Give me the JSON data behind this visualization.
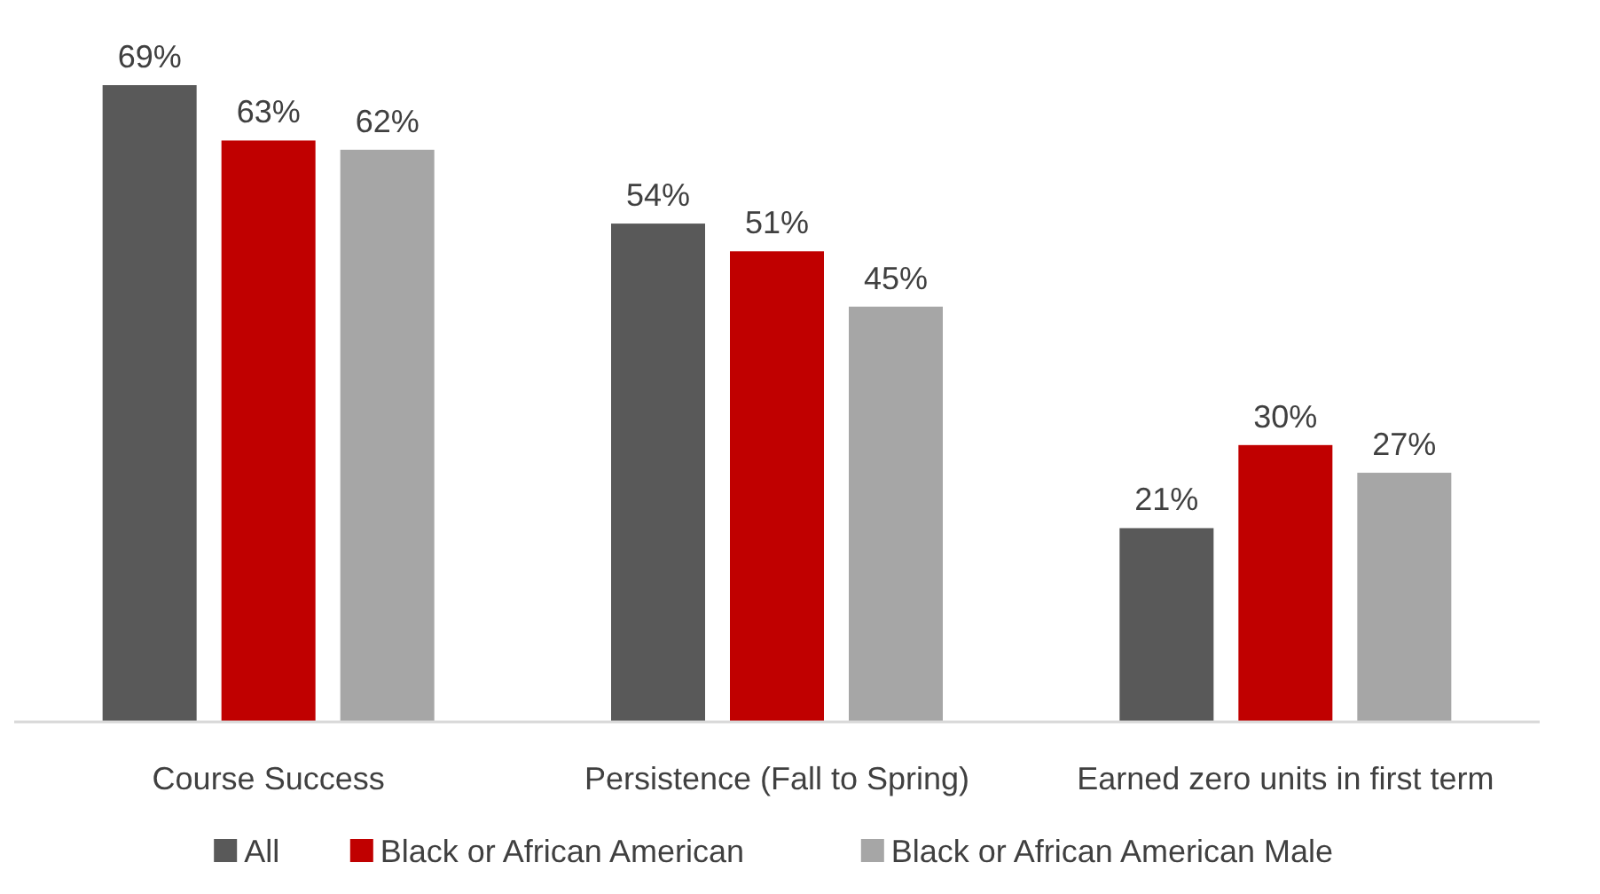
{
  "chart_data": {
    "type": "bar",
    "categories": [
      "Course Success",
      "Persistence (Fall to Spring)",
      "Earned zero units in first term"
    ],
    "series": [
      {
        "name": "All",
        "color": "#595959",
        "values": [
          69,
          54,
          21
        ],
        "value_labels": [
          "69%",
          "54%",
          "21%"
        ]
      },
      {
        "name": "Black or African American",
        "color": "#c00000",
        "values": [
          63,
          51,
          30
        ],
        "value_labels": [
          "63%",
          "51%",
          "30%"
        ]
      },
      {
        "name": "Black or African American Male",
        "color": "#a6a6a6",
        "values": [
          62,
          45,
          27
        ],
        "value_labels": [
          "62%",
          "45%",
          "27%"
        ]
      }
    ],
    "tick_labels": "x",
    "legend": "bottom"
  }
}
